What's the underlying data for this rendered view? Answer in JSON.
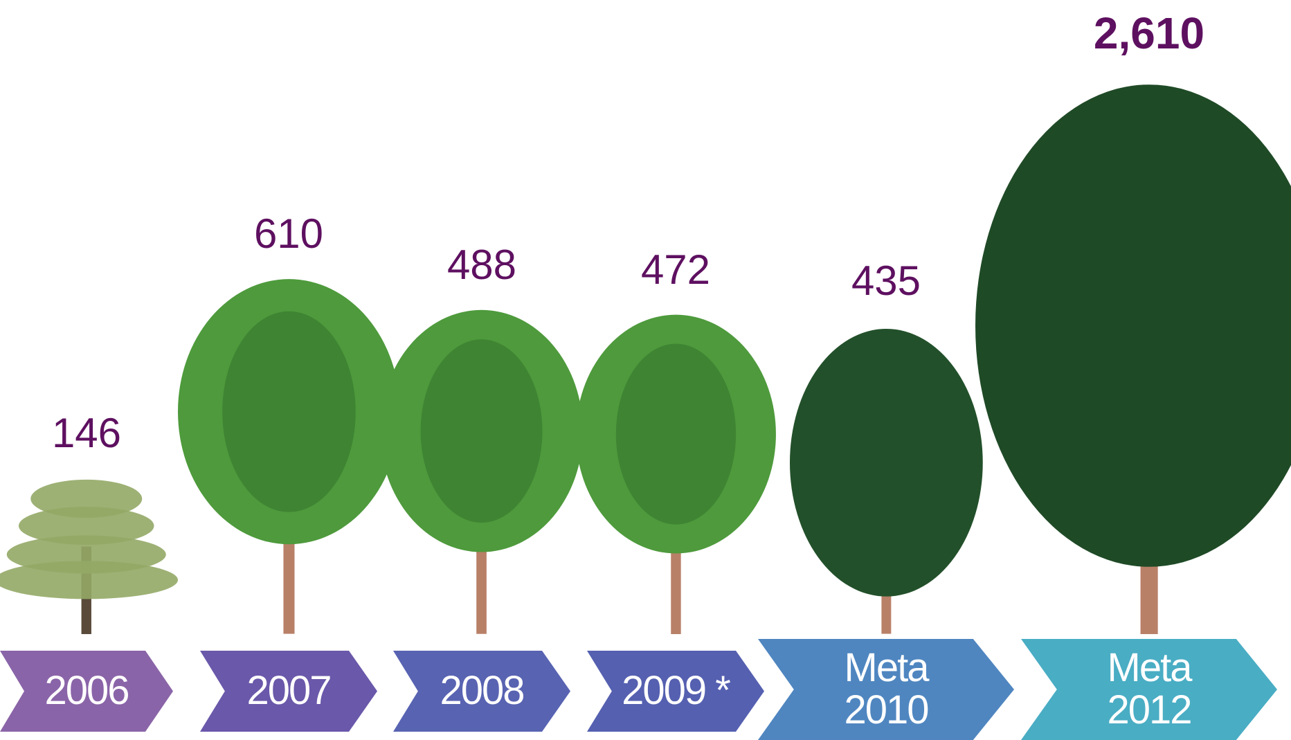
{
  "chart_data": {
    "type": "pictograph",
    "categories": [
      "2006",
      "2007",
      "2008",
      "2009 *",
      "Meta 2010",
      "Meta 2012"
    ],
    "values": [
      146,
      610,
      488,
      472,
      435,
      2610
    ],
    "value_labels": [
      "146",
      "610",
      "488",
      "472",
      "435",
      "2,610"
    ],
    "arrow_colors": [
      "#8a64a8",
      "#6a58aa",
      "#5863b2",
      "#5560b0",
      "#4f86c0",
      "#49adc4"
    ],
    "tree_colors": [
      "#93a866",
      "#4e9a3c",
      "#4e9a3c",
      "#4e9a3c",
      "#22502a",
      "#1f4a26"
    ],
    "label_color": "#5e1060"
  }
}
